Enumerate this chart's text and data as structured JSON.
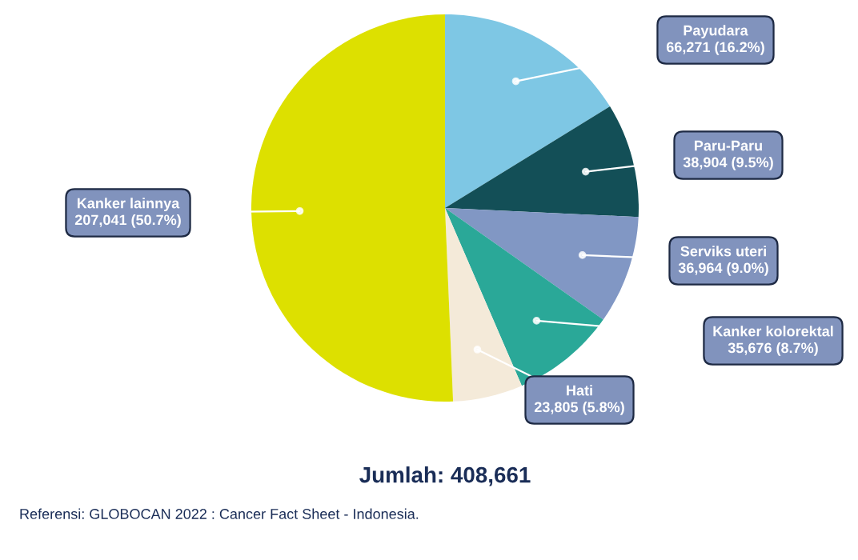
{
  "chart_data": {
    "type": "pie",
    "title": "Jumlah: 408,661",
    "categories": [
      "Payudara",
      "Paru-Paru",
      "Serviks uteri",
      "Kanker kolorektal",
      "Hati",
      "Kanker lainnya"
    ],
    "values": [
      66271,
      38904,
      36964,
      35676,
      23805,
      207041
    ],
    "value_labels": [
      "66,271 (16.2%)",
      "38,904 (9.5%)",
      "36,964 (9.0%)",
      "35,676 (8.7%)",
      "23,805 (5.8%)",
      "207,041 (50.7%)"
    ],
    "colors": [
      "#7ec7e4",
      "#134f57",
      "#8197c4",
      "#2aa898",
      "#f4ead9",
      "#dde000"
    ],
    "annotations": [
      "Referensi: GLOBOCAN 2022 : Cancer Fact Sheet - Indonesia."
    ],
    "legend": false
  }
}
